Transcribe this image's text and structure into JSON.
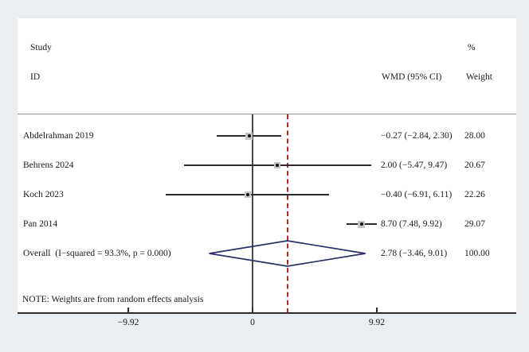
{
  "chart_data": {
    "type": "forest",
    "header": {
      "study_line1": "Study",
      "study_line2": "ID",
      "effect_col": "WMD (95% CI)",
      "weight_col_line1": "%",
      "weight_col_line2": "Weight"
    },
    "studies": [
      {
        "id": "Abdelrahman 2019",
        "wmd": -0.27,
        "ci_low": -2.84,
        "ci_high": 2.3,
        "label": "−0.27 (−2.84, 2.30)",
        "weight": 28.0,
        "weight_label": "28.00"
      },
      {
        "id": "Behrens 2024",
        "wmd": 2.0,
        "ci_low": -5.47,
        "ci_high": 9.47,
        "label": "2.00 (−5.47, 9.47)",
        "weight": 20.67,
        "weight_label": "20.67"
      },
      {
        "id": "Koch 2023",
        "wmd": -0.4,
        "ci_low": -6.91,
        "ci_high": 6.11,
        "label": "−0.40 (−6.91, 6.11)",
        "weight": 22.26,
        "weight_label": "22.26"
      },
      {
        "id": "Pan 2014",
        "wmd": 8.7,
        "ci_low": 7.48,
        "ci_high": 9.92,
        "label": "8.70 (7.48, 9.92)",
        "weight": 29.07,
        "weight_label": "29.07"
      }
    ],
    "overall": {
      "id": "Overall  (I−squared = 93.3%, p = 0.000)",
      "wmd": 2.78,
      "ci_low": -3.46,
      "ci_high": 9.01,
      "label": "2.78 (−3.46, 9.01)",
      "weight_label": "100.00"
    },
    "note": "NOTE: Weights are from random effects analysis",
    "axis": {
      "ticks": [
        -9.92,
        0,
        9.92
      ],
      "tick_labels": [
        "−9.92",
        "0",
        "9.92"
      ],
      "zero_line_at": 0,
      "dashed_line_at": 2.78,
      "xlim": [
        -13.0,
        11.1
      ]
    },
    "colors": {
      "background": "#e8eef2",
      "plot_bg": "#ffffff",
      "diamond": "#2a3069",
      "dashed_line": "#a33228",
      "ci_line": "#2b2b2b",
      "marker_dot": "#111111",
      "marker_box": "#c4c4c4",
      "axis": "#2e2e2e",
      "zero_line": "#4a4a4a",
      "separator": "#8f8f8f",
      "text": "#1a1a1a"
    }
  }
}
